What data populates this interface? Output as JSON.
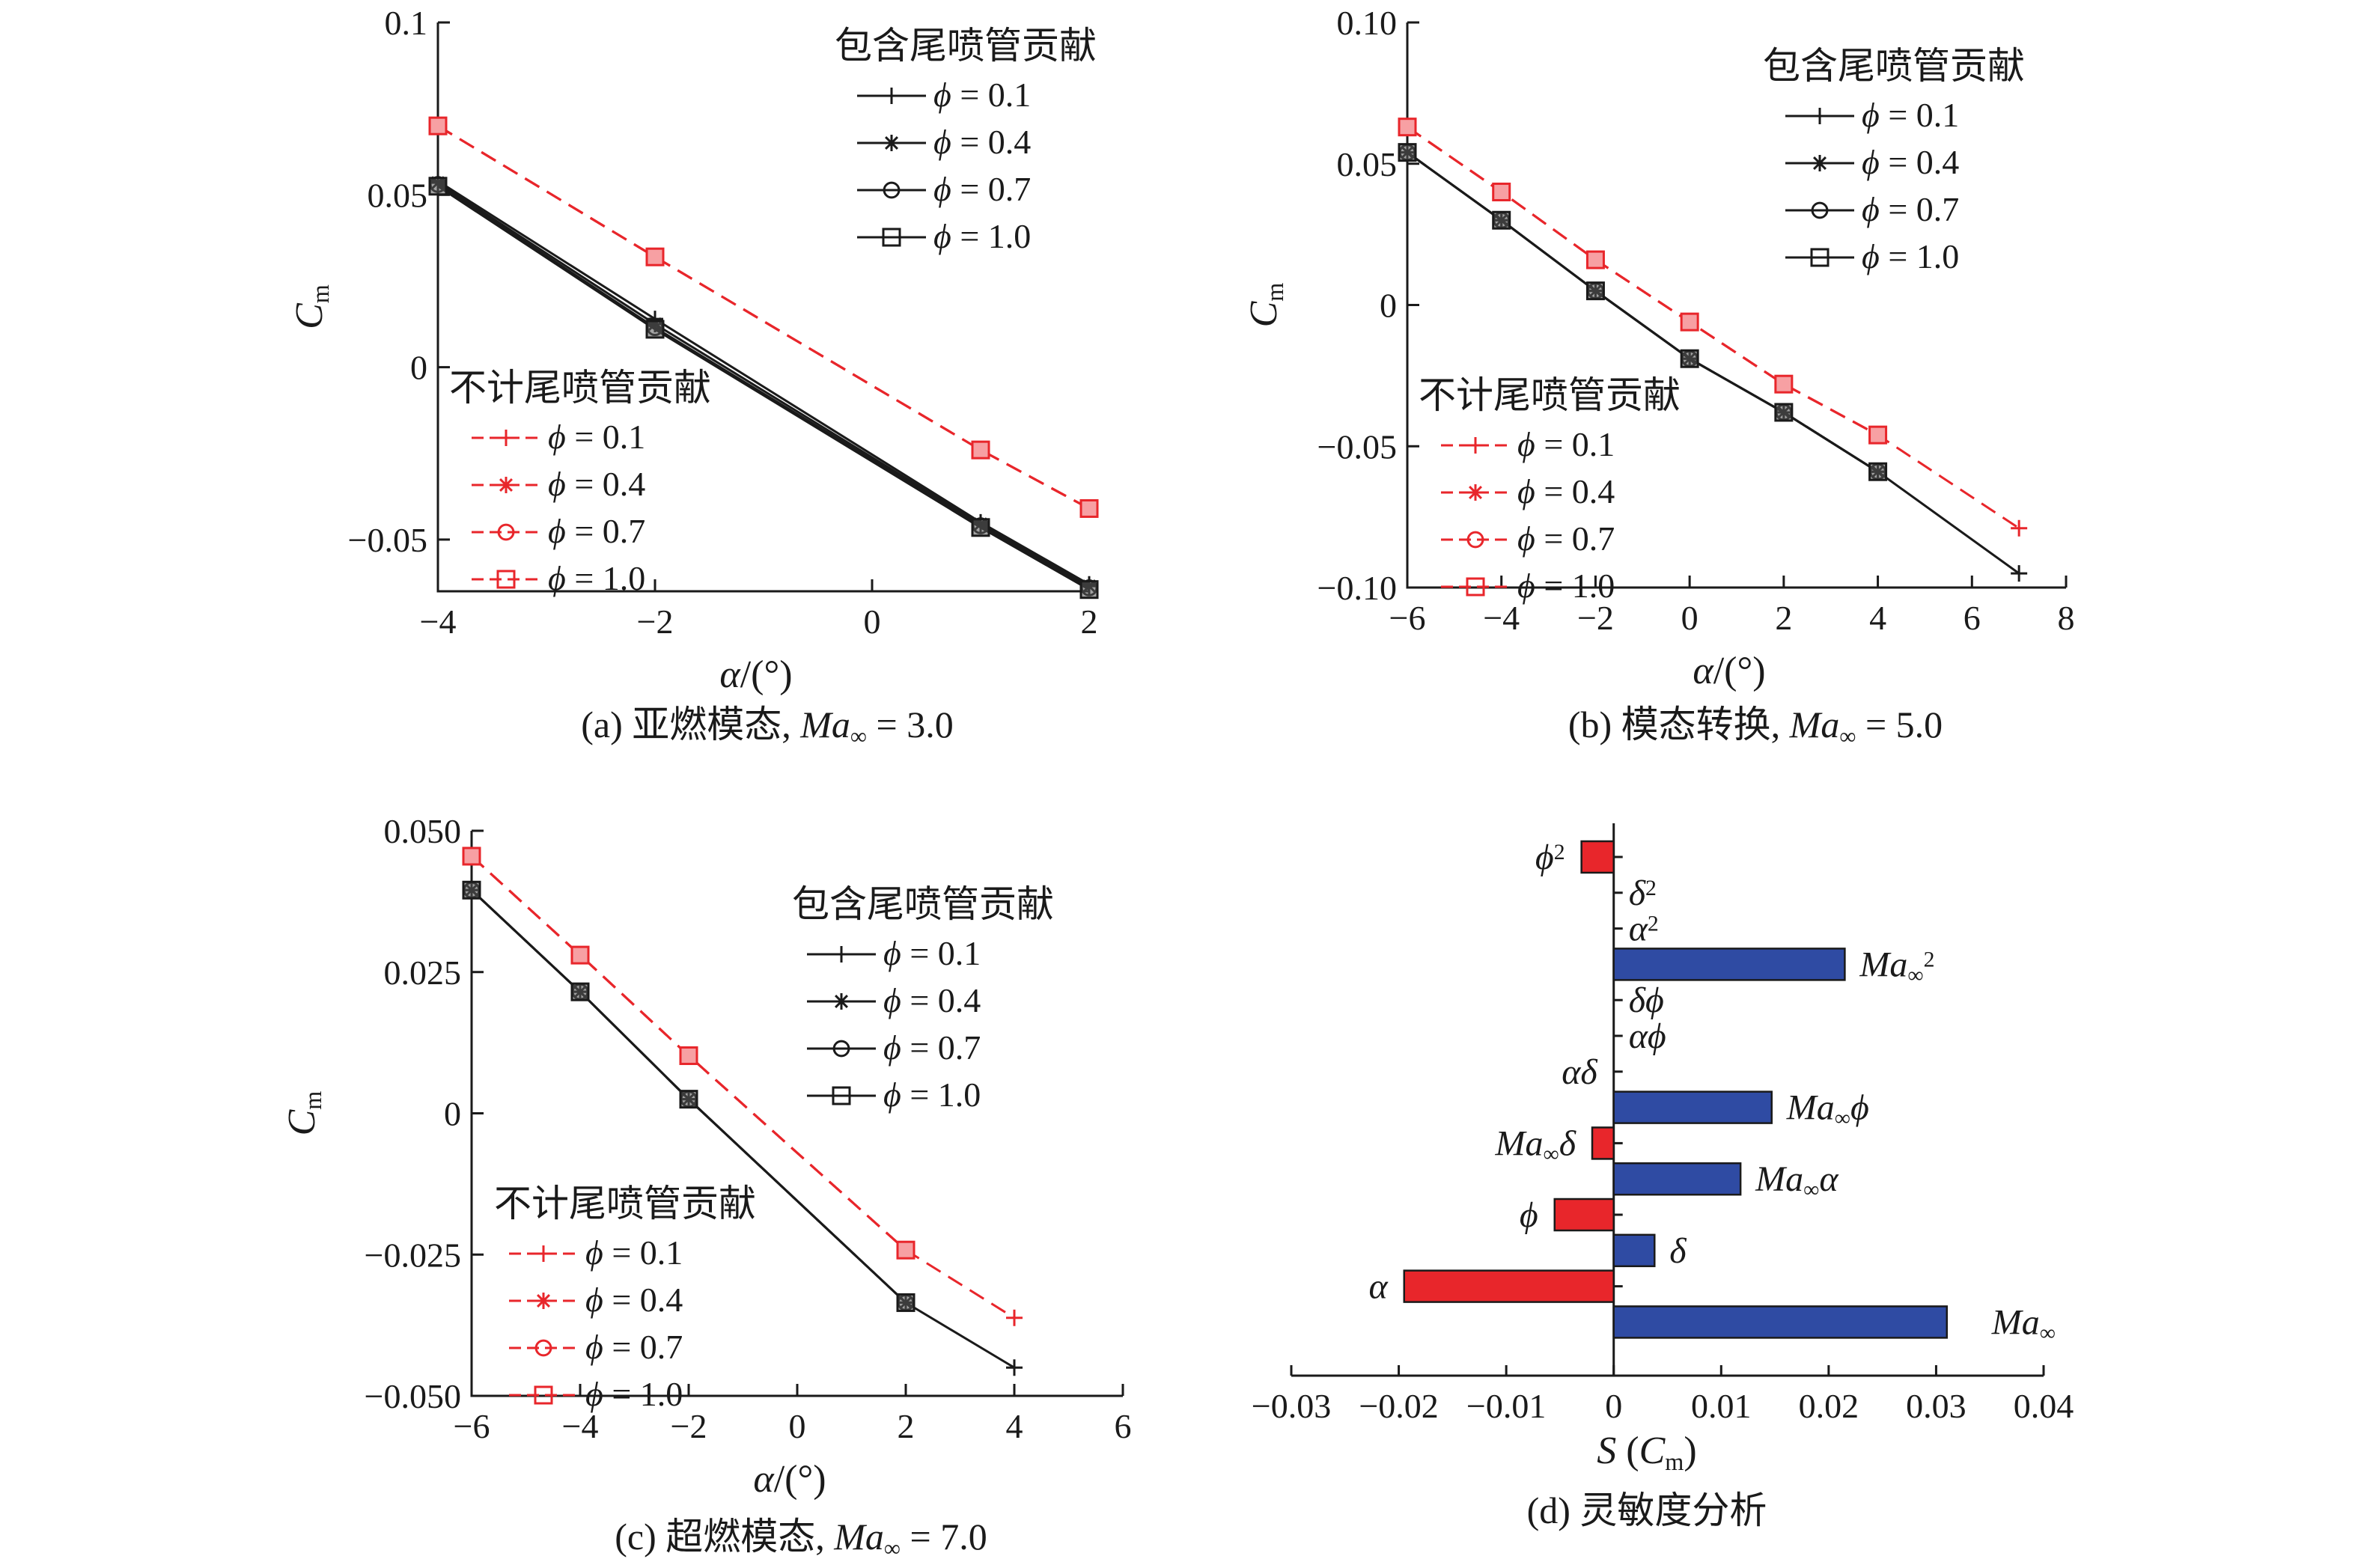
{
  "colors": {
    "black": "#1a1a1a",
    "red": "#e8262b",
    "blue": "#2f4ba3"
  },
  "chart_data": [
    {
      "type": "line",
      "caption": "(a) 亚燃模态, Ma∞ = 3.0",
      "xlabel": "α/(°)",
      "ylabel": "Cm",
      "xlim": [
        -4,
        2
      ],
      "ylim": [
        -0.065,
        0.1
      ],
      "xticks": [
        -4,
        -2,
        0,
        2
      ],
      "xtick_labels": [
        "−4",
        "−2",
        "0",
        "2"
      ],
      "yticks": [
        0.1,
        0.05,
        0,
        -0.05
      ],
      "ytick_labels": [
        "0.1",
        "0.05",
        "0",
        "−0.05"
      ],
      "legend_with": {
        "title": "包含尾喷管贡献",
        "entries": [
          "ϕ = 0.1",
          "ϕ = 0.4",
          "ϕ = 0.7",
          "ϕ = 1.0"
        ]
      },
      "legend_without": {
        "title": "不计尾喷管贡献",
        "entries": [
          "ϕ = 0.1",
          "ϕ = 0.4",
          "ϕ = 0.7",
          "ϕ = 1.0"
        ]
      },
      "series": [
        {
          "group": "with",
          "marker": "plus",
          "name": "ϕ = 0.1",
          "x": [
            -4,
            -2,
            1,
            2
          ],
          "y": [
            0.054,
            0.014,
            -0.045,
            -0.063
          ]
        },
        {
          "group": "with",
          "marker": "star",
          "name": "ϕ = 0.4",
          "x": [
            -4,
            -2,
            1,
            2
          ],
          "y": [
            0.0535,
            0.0125,
            -0.0455,
            -0.0635
          ]
        },
        {
          "group": "with",
          "marker": "circle",
          "name": "ϕ = 0.7",
          "x": [
            -4,
            -2,
            1,
            2
          ],
          "y": [
            0.053,
            0.0115,
            -0.046,
            -0.064
          ]
        },
        {
          "group": "with",
          "marker": "square",
          "name": "ϕ = 1.0",
          "x": [
            -4,
            -2,
            1,
            2
          ],
          "y": [
            0.0525,
            0.011,
            -0.0465,
            -0.0645
          ]
        },
        {
          "group": "without",
          "marker": "plus",
          "name": "ϕ = 0.1",
          "x": [
            -4,
            -2,
            1,
            2
          ],
          "y": [
            0.07,
            0.032,
            -0.024,
            -0.041
          ]
        },
        {
          "group": "without",
          "marker": "star",
          "name": "ϕ = 0.4",
          "x": [
            -4,
            -2,
            1,
            2
          ],
          "y": [
            0.07,
            0.032,
            -0.024,
            -0.041
          ]
        },
        {
          "group": "without",
          "marker": "circle",
          "name": "ϕ = 0.7",
          "x": [
            -4,
            -2,
            1,
            2
          ],
          "y": [
            0.07,
            0.032,
            -0.024,
            -0.041
          ]
        },
        {
          "group": "without",
          "marker": "square",
          "name": "ϕ = 1.0",
          "x": [
            -4,
            -2,
            1,
            2
          ],
          "y": [
            0.07,
            0.032,
            -0.024,
            -0.041
          ]
        }
      ]
    },
    {
      "type": "line",
      "caption": "(b) 模态转换, Ma∞ = 5.0",
      "xlabel": "α/(°)",
      "ylabel": "Cm",
      "xlim": [
        -6,
        8
      ],
      "ylim": [
        -0.1,
        0.1
      ],
      "xticks": [
        -6,
        -4,
        -2,
        0,
        2,
        4,
        6,
        8
      ],
      "xtick_labels": [
        "−6",
        "−4",
        "−2",
        "0",
        "2",
        "4",
        "6",
        "8"
      ],
      "yticks": [
        0.1,
        0.05,
        0,
        -0.05,
        -0.1
      ],
      "ytick_labels": [
        "0.10",
        "0.05",
        "0",
        "−0.05",
        "−0.10"
      ],
      "legend_with": {
        "title": "包含尾喷管贡献",
        "entries": [
          "ϕ = 0.1",
          "ϕ = 0.4",
          "ϕ = 0.7",
          "ϕ = 1.0"
        ]
      },
      "legend_without": {
        "title": "不计尾喷管贡献",
        "entries": [
          "ϕ = 0.1",
          "ϕ = 0.4",
          "ϕ = 0.7",
          "ϕ = 1.0"
        ]
      },
      "series": [
        {
          "group": "with",
          "marker": "plus",
          "name": "ϕ = 0.1",
          "x": [
            -6,
            -4,
            -2,
            0,
            2,
            4,
            7
          ],
          "y": [
            0.054,
            0.03,
            0.005,
            -0.019,
            -0.038,
            -0.059,
            -0.095
          ]
        },
        {
          "group": "with",
          "marker": "star",
          "name": "ϕ = 0.4",
          "x": [
            -6,
            -4,
            -2,
            0,
            2,
            4
          ],
          "y": [
            0.054,
            0.03,
            0.005,
            -0.019,
            -0.038,
            -0.059
          ]
        },
        {
          "group": "with",
          "marker": "circle",
          "name": "ϕ = 0.7",
          "x": [
            -6,
            -4,
            -2,
            0,
            2,
            4
          ],
          "y": [
            0.054,
            0.03,
            0.005,
            -0.019,
            -0.038,
            -0.059
          ]
        },
        {
          "group": "with",
          "marker": "square",
          "name": "ϕ = 1.0",
          "x": [
            -6,
            -4,
            -2,
            0,
            2,
            4
          ],
          "y": [
            0.054,
            0.03,
            0.005,
            -0.019,
            -0.038,
            -0.059
          ]
        },
        {
          "group": "without",
          "marker": "plus",
          "name": "ϕ = 0.1",
          "x": [
            -6,
            -4,
            -2,
            0,
            2,
            4,
            7
          ],
          "y": [
            0.063,
            0.04,
            0.016,
            -0.006,
            -0.028,
            -0.046,
            -0.079
          ]
        },
        {
          "group": "without",
          "marker": "star",
          "name": "ϕ = 0.4",
          "x": [
            -6,
            -4,
            -2,
            0,
            2,
            4
          ],
          "y": [
            0.063,
            0.04,
            0.016,
            -0.006,
            -0.028,
            -0.046
          ]
        },
        {
          "group": "without",
          "marker": "circle",
          "name": "ϕ = 0.7",
          "x": [
            -6,
            -4,
            -2,
            0,
            2,
            4
          ],
          "y": [
            0.063,
            0.04,
            0.016,
            -0.006,
            -0.028,
            -0.046
          ]
        },
        {
          "group": "without",
          "marker": "square",
          "name": "ϕ = 1.0",
          "x": [
            -6,
            -4,
            -2,
            0,
            2,
            4
          ],
          "y": [
            0.063,
            0.04,
            0.016,
            -0.006,
            -0.028,
            -0.046
          ]
        }
      ]
    },
    {
      "type": "line",
      "caption": "(c) 超燃模态, Ma∞ = 7.0",
      "xlabel": "α/(°)",
      "ylabel": "Cm",
      "xlim": [
        -6,
        6
      ],
      "ylim": [
        -0.05,
        0.05
      ],
      "xticks": [
        -6,
        -4,
        -2,
        0,
        2,
        4,
        6
      ],
      "xtick_labels": [
        "−6",
        "−4",
        "−2",
        "0",
        "2",
        "4",
        "6"
      ],
      "yticks": [
        0.05,
        0.025,
        0,
        -0.025,
        -0.05
      ],
      "ytick_labels": [
        "0.050",
        "0.025",
        "0",
        "−0.025",
        "−0.050"
      ],
      "legend_with": {
        "title": "包含尾喷管贡献",
        "entries": [
          "ϕ = 0.1",
          "ϕ = 0.4",
          "ϕ = 0.7",
          "ϕ = 1.0"
        ]
      },
      "legend_without": {
        "title": "不计尾喷管贡献",
        "entries": [
          "ϕ = 0.1",
          "ϕ = 0.4",
          "ϕ = 0.7",
          "ϕ = 1.0"
        ]
      },
      "series": [
        {
          "group": "with",
          "marker": "plus",
          "name": "ϕ = 0.1",
          "x": [
            -6,
            -4,
            -2,
            2,
            4
          ],
          "y": [
            0.0395,
            0.0215,
            0.0025,
            -0.0335,
            -0.045
          ]
        },
        {
          "group": "with",
          "marker": "star",
          "name": "ϕ = 0.4",
          "x": [
            -6,
            -4,
            -2,
            2
          ],
          "y": [
            0.0395,
            0.0215,
            0.0025,
            -0.0335
          ]
        },
        {
          "group": "with",
          "marker": "circle",
          "name": "ϕ = 0.7",
          "x": [
            -6,
            -4,
            -2,
            2
          ],
          "y": [
            0.0395,
            0.0215,
            0.0025,
            -0.0335
          ]
        },
        {
          "group": "with",
          "marker": "square",
          "name": "ϕ = 1.0",
          "x": [
            -6,
            -4,
            -2,
            2
          ],
          "y": [
            0.0395,
            0.0215,
            0.0025,
            -0.0335
          ]
        },
        {
          "group": "without",
          "marker": "plus",
          "name": "ϕ = 0.1",
          "x": [
            -6,
            -4,
            -2,
            2,
            4
          ],
          "y": [
            0.0455,
            0.028,
            0.0102,
            -0.0242,
            -0.0362
          ]
        },
        {
          "group": "without",
          "marker": "star",
          "name": "ϕ = 0.4",
          "x": [
            -6,
            -4,
            -2,
            2
          ],
          "y": [
            0.0455,
            0.028,
            0.0102,
            -0.0242
          ]
        },
        {
          "group": "without",
          "marker": "circle",
          "name": "ϕ = 0.7",
          "x": [
            -6,
            -4,
            -2,
            2
          ],
          "y": [
            0.0455,
            0.028,
            0.0102,
            -0.0242
          ]
        },
        {
          "group": "without",
          "marker": "square",
          "name": "ϕ = 1.0",
          "x": [
            -6,
            -4,
            -2,
            2
          ],
          "y": [
            0.0455,
            0.028,
            0.0102,
            -0.0242
          ]
        }
      ]
    },
    {
      "type": "bar",
      "orientation": "horizontal",
      "caption": "(d) 灵敏度分析",
      "xlabel": "S (Cm)",
      "xlim": [
        -0.03,
        0.04
      ],
      "xticks": [
        -0.03,
        -0.02,
        -0.01,
        0,
        0.01,
        0.02,
        0.03,
        0.04
      ],
      "xtick_labels": [
        "−0.03",
        "−0.02",
        "−0.01",
        "0",
        "0.01",
        "0.02",
        "0.03",
        "0.04"
      ],
      "categories": [
        "ϕ²",
        "δ²",
        "α²",
        "Ma∞²",
        "δϕ",
        "αϕ",
        "αδ",
        "Ma∞ϕ",
        "Ma∞δ",
        "Ma∞α",
        "ϕ",
        "δ",
        "α",
        "Ma∞"
      ],
      "values": [
        -0.003,
        0,
        0,
        0.0215,
        0,
        0,
        0,
        0.0147,
        -0.002,
        0.0118,
        -0.0055,
        0.0038,
        -0.0195,
        0.031
      ]
    }
  ]
}
